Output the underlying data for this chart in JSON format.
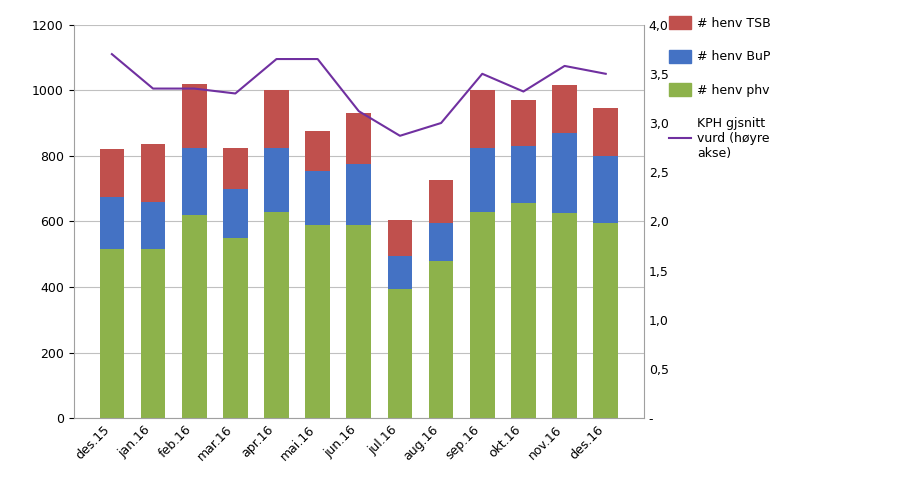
{
  "categories": [
    "des.15",
    "jan.16",
    "feb.16",
    "mar.16",
    "apr.16",
    "mai.16",
    "jun.16",
    "jul.16",
    "aug.16",
    "sep.16",
    "okt.16",
    "nov.16",
    "des.16"
  ],
  "phv": [
    515,
    515,
    620,
    550,
    630,
    590,
    590,
    395,
    480,
    630,
    655,
    625,
    595
  ],
  "bup": [
    160,
    145,
    205,
    150,
    195,
    165,
    185,
    100,
    115,
    195,
    175,
    245,
    205
  ],
  "tsb": [
    145,
    175,
    195,
    125,
    175,
    120,
    155,
    110,
    130,
    175,
    140,
    145,
    145
  ],
  "kph": [
    3.7,
    3.35,
    3.35,
    3.3,
    3.65,
    3.65,
    3.12,
    2.87,
    3.0,
    3.5,
    3.32,
    3.58,
    3.5
  ],
  "phv_color": "#8DB24B",
  "bup_color": "#4472C4",
  "tsb_color": "#C0504D",
  "kph_color": "#7030A0",
  "ylim_left": [
    0,
    1200
  ],
  "ylim_right": [
    0,
    4.0
  ],
  "legend_tsb": "# henv TSB",
  "legend_bup": "# henv BuP",
  "legend_phv": "# henv phv",
  "legend_kph": "KPH gjsnitt\nvurd (høyre\nakse)",
  "yticks_left": [
    0,
    200,
    400,
    600,
    800,
    1000,
    1200
  ],
  "yticks_right_vals": [
    0,
    0.5,
    1.0,
    1.5,
    2.0,
    2.5,
    3.0,
    3.5,
    4.0
  ],
  "yticks_right_labels": [
    "-",
    "0,5",
    "1,0",
    "1,5",
    "2,0",
    "2,5",
    "3,0",
    "3,5",
    "4,0"
  ],
  "bg_color": "#ffffff",
  "grid_color": "#c0c0c0"
}
